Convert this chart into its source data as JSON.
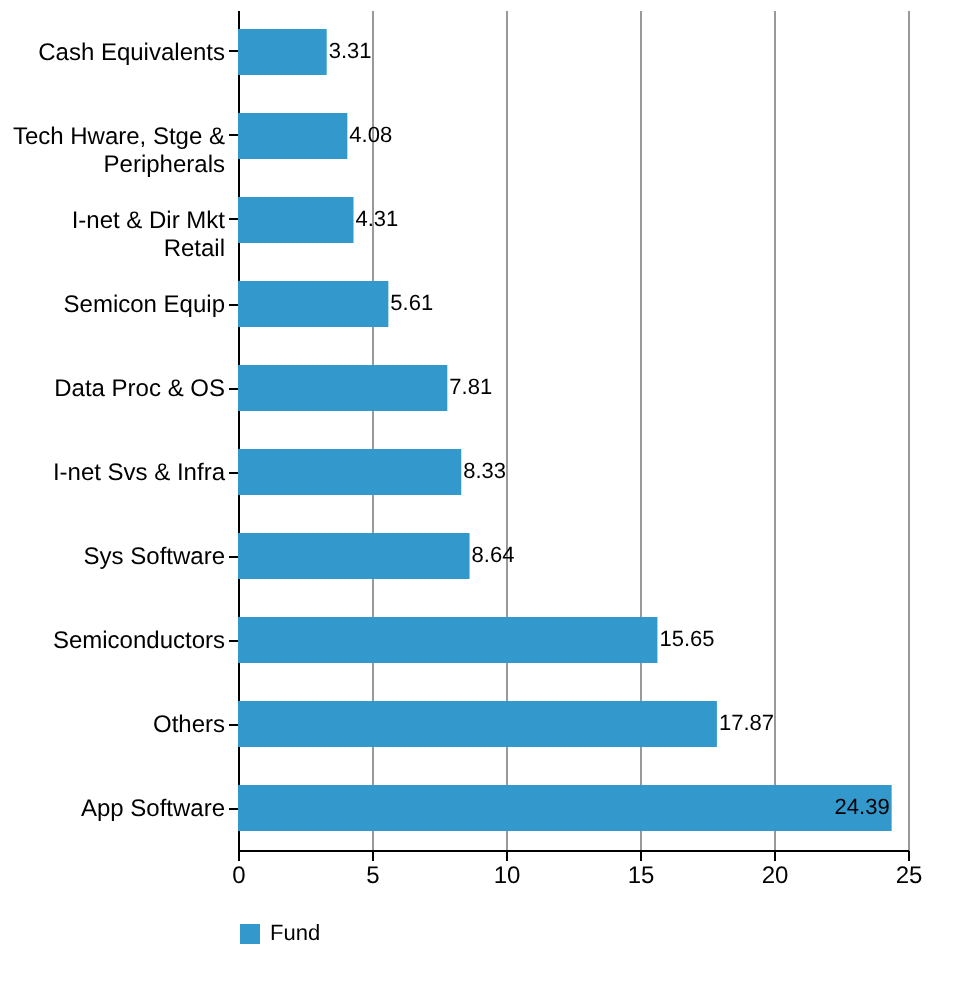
{
  "chart_data": {
    "type": "bar",
    "orientation": "horizontal",
    "categories": [
      "Cash Equivalents",
      "Tech Hware, Stge & Peripherals",
      "I-net & Dir Mkt Retail",
      "Semicon Equip",
      "Data Proc & OS",
      "I-net Svs & Infra",
      "Sys Software",
      "Semiconductors",
      "Others",
      "App Software"
    ],
    "series": [
      {
        "name": "Fund",
        "color": "#3399cc",
        "values": [
          3.31,
          4.08,
          4.31,
          5.61,
          7.81,
          8.33,
          8.64,
          15.65,
          17.87,
          24.39
        ]
      }
    ],
    "xlim": [
      0,
      25
    ],
    "xticks": [
      0,
      5,
      10,
      15,
      20,
      25
    ],
    "grid": "x",
    "legend": "bottom",
    "data_labels": true
  }
}
